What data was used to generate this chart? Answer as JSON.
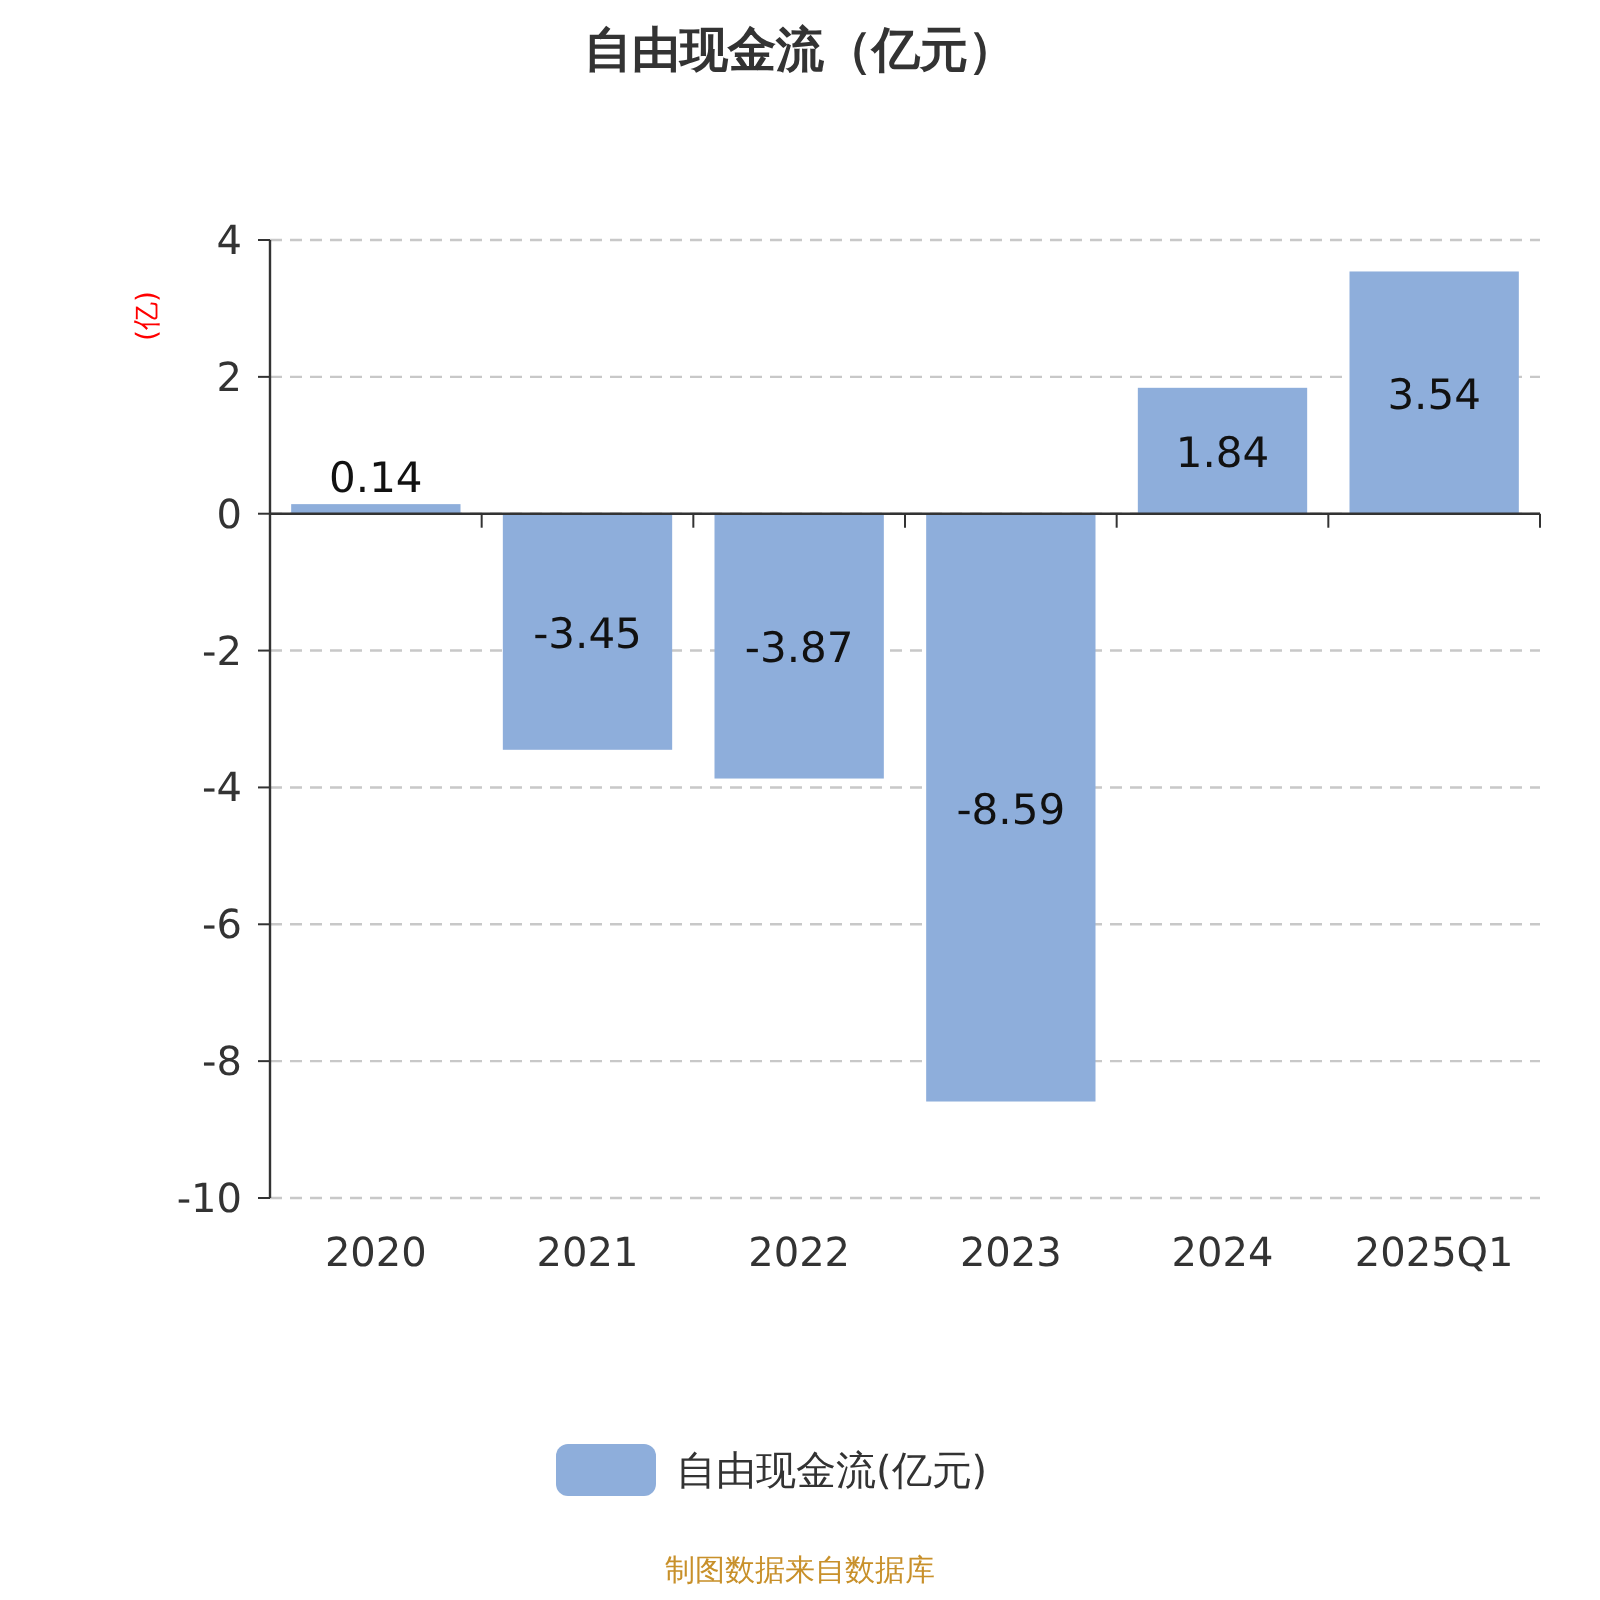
{
  "chart_data": {
    "type": "bar",
    "title": "自由现金流（亿元）",
    "ylabel": "(亿)",
    "categories": [
      "2020",
      "2021",
      "2022",
      "2023",
      "2024",
      "2025Q1"
    ],
    "series": [
      {
        "name": "自由现金流(亿元)",
        "color": "#8eaedb",
        "values": [
          0.14,
          -3.45,
          -3.87,
          -8.59,
          1.84,
          3.54
        ]
      }
    ],
    "ylim": [
      -10,
      4
    ],
    "yticks": [
      -10,
      -8,
      -6,
      -4,
      -2,
      0,
      2,
      4
    ],
    "grid": "y",
    "legend": "bottom",
    "data_labels": true,
    "annotations": [
      "制图数据来自数据库"
    ]
  }
}
